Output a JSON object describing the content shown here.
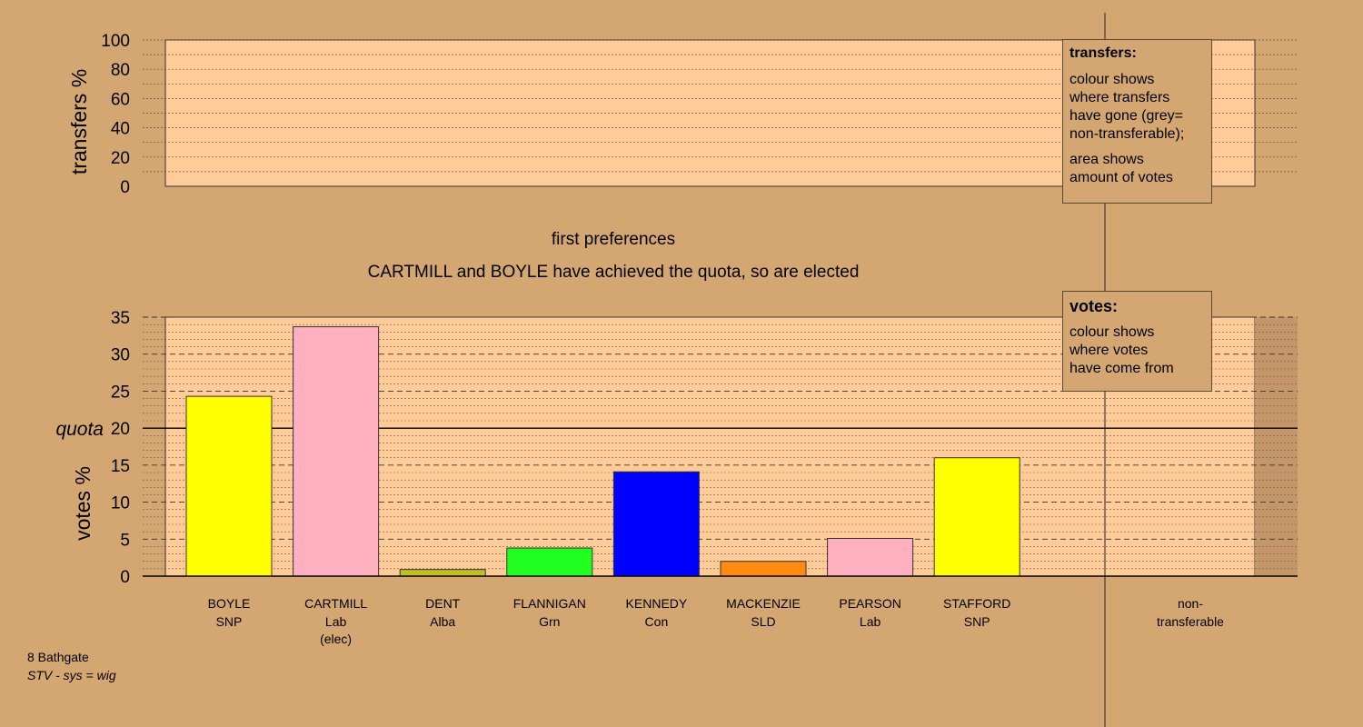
{
  "top_panel": {
    "ylabel": "transfers %",
    "yticks": [
      "0",
      "20",
      "40",
      "60",
      "80",
      "100"
    ]
  },
  "stage_title": "first preferences",
  "stage_subtitle": "CARTMILL and BOYLE have achieved the quota, so are elected",
  "legend_transfers": {
    "title": "transfers:",
    "text1": "colour shows\nwhere transfers\nhave gone (grey=\nnon-transferable);",
    "text2": "area shows\namount of votes"
  },
  "legend_votes": {
    "title": "votes:",
    "text": "colour shows\nwhere votes\nhave come from"
  },
  "quota_label": "quota",
  "footer": {
    "district": "8 Bathgate",
    "system": "STV - sys = wig"
  },
  "colors": {
    "background": "#d4a772",
    "plot_background": "#ffcc99",
    "nontransferable_column": "#c4976a"
  },
  "chart_data": [
    {
      "type": "bar",
      "panel": "transfers",
      "ylabel": "transfers %",
      "ylim": [
        0,
        100
      ],
      "yticks": [
        0,
        20,
        40,
        60,
        80,
        100
      ],
      "grid": true,
      "categories": [],
      "values": []
    },
    {
      "type": "bar",
      "panel": "votes",
      "title": "first preferences",
      "subtitle": "CARTMILL and BOYLE have achieved the quota, so are elected",
      "ylabel": "votes %",
      "ylim": [
        0,
        35
      ],
      "yticks": [
        0,
        5,
        10,
        15,
        20,
        25,
        30,
        35
      ],
      "quota": 20,
      "grid": true,
      "categories": [
        {
          "name": "BOYLE",
          "party": "SNP",
          "note": "",
          "value": 24.3,
          "color": "#ffff00"
        },
        {
          "name": "CARTMILL",
          "party": "Lab",
          "note": "(elec)",
          "value": 33.7,
          "color": "#ffb0c0"
        },
        {
          "name": "DENT",
          "party": "Alba",
          "note": "",
          "value": 0.9,
          "color": "#c0c020"
        },
        {
          "name": "FLANNIGAN",
          "party": "Grn",
          "note": "",
          "value": 3.8,
          "color": "#20ff20"
        },
        {
          "name": "KENNEDY",
          "party": "Con",
          "note": "",
          "value": 14.1,
          "color": "#0000ff"
        },
        {
          "name": "MACKENZIE",
          "party": "SLD",
          "note": "",
          "value": 2.0,
          "color": "#ff8c10"
        },
        {
          "name": "PEARSON",
          "party": "Lab",
          "note": "",
          "value": 5.1,
          "color": "#ffb0c0"
        },
        {
          "name": "STAFFORD",
          "party": "SNP",
          "note": "",
          "value": 16.0,
          "color": "#ffff00"
        }
      ],
      "nontransferable": {
        "label_line1": "non-",
        "label_line2": "transferable",
        "value": 0
      }
    }
  ]
}
